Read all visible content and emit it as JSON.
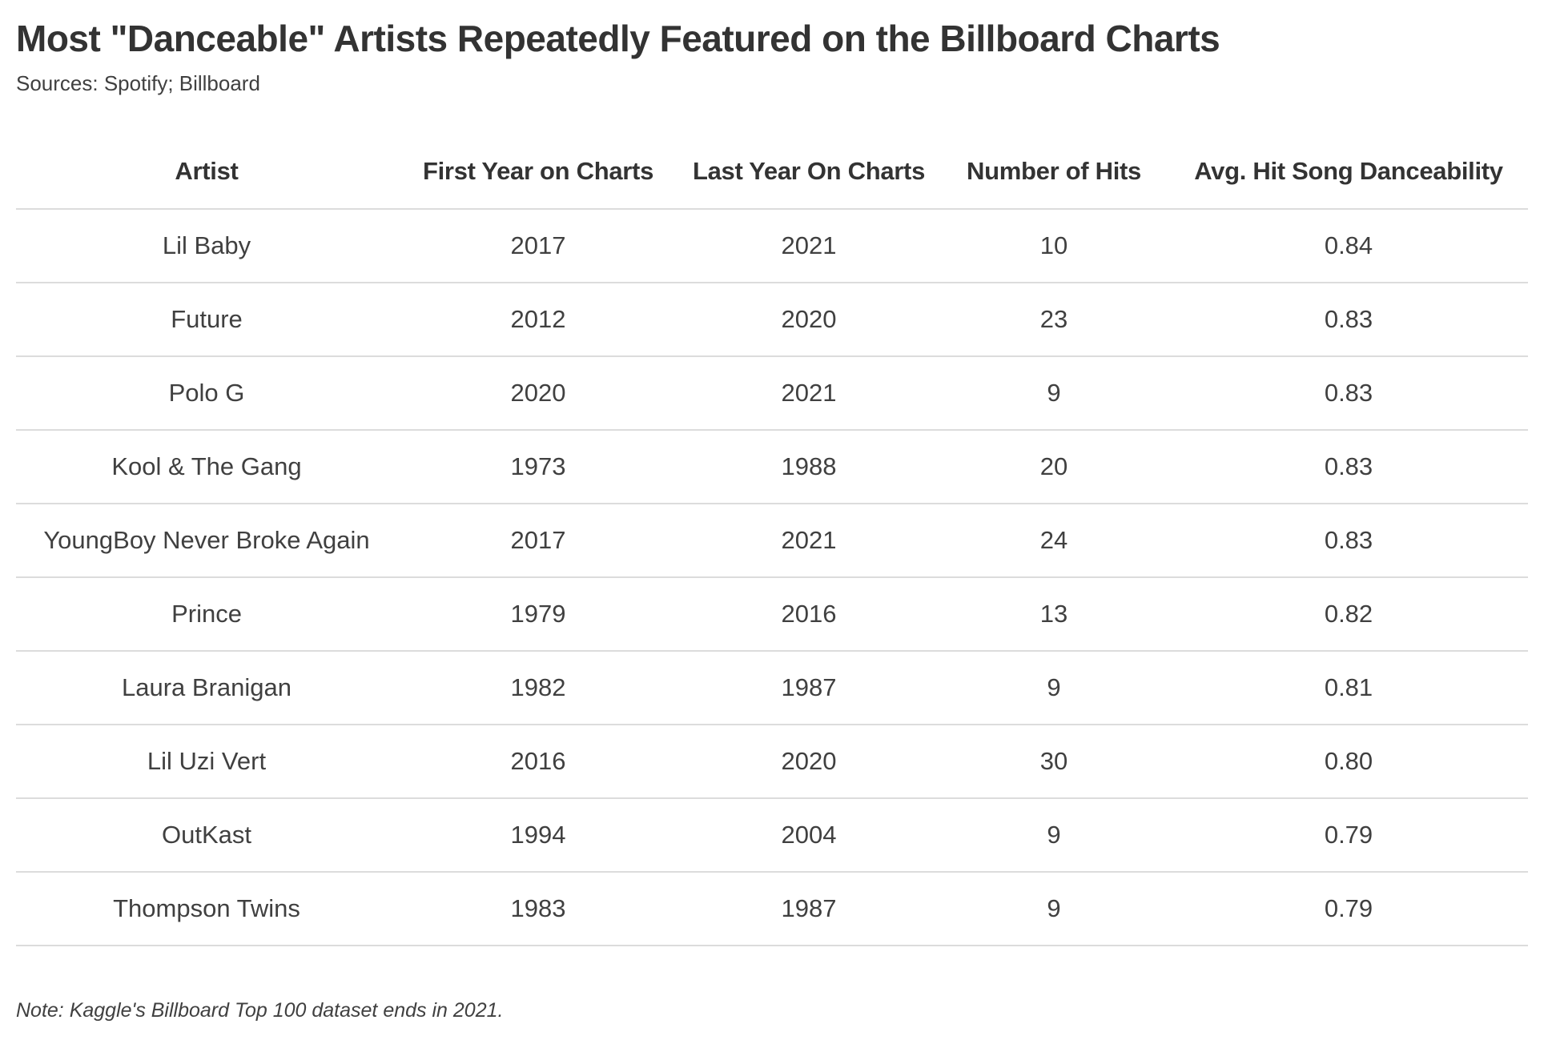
{
  "header": {
    "title": "Most \"Danceable\" Artists Repeatedly Featured on the Billboard Charts",
    "sources_line": "Sources: Spotify; Billboard"
  },
  "footnote": "Note: Kaggle's Billboard Top 100 dataset ends in 2021.",
  "chart_data": {
    "type": "table",
    "title": "Most \"Danceable\" Artists Repeatedly Featured on the Billboard Charts",
    "columns": [
      "Artist",
      "First Year on Charts",
      "Last Year On Charts",
      "Number of Hits",
      "Avg. Hit Song Danceability"
    ],
    "rows": [
      [
        "Lil Baby",
        "2017",
        "2021",
        "10",
        "0.84"
      ],
      [
        "Future",
        "2012",
        "2020",
        "23",
        "0.83"
      ],
      [
        "Polo G",
        "2020",
        "2021",
        "9",
        "0.83"
      ],
      [
        "Kool & The Gang",
        "1973",
        "1988",
        "20",
        "0.83"
      ],
      [
        "YoungBoy Never Broke Again",
        "2017",
        "2021",
        "24",
        "0.83"
      ],
      [
        "Prince",
        "1979",
        "2016",
        "13",
        "0.82"
      ],
      [
        "Laura Branigan",
        "1982",
        "1987",
        "9",
        "0.81"
      ],
      [
        "Lil Uzi Vert",
        "2016",
        "2020",
        "30",
        "0.80"
      ],
      [
        "OutKast",
        "1994",
        "2004",
        "9",
        "0.79"
      ],
      [
        "Thompson Twins",
        "1983",
        "1987",
        "9",
        "0.79"
      ]
    ],
    "layout": {
      "grid": "horizontal-row-dividers-only",
      "alignment": "all-columns-centered"
    }
  },
  "colors": {
    "title_text": "#333333",
    "body_text": "#404040",
    "divider": "#dcdcdc",
    "background": "#ffffff"
  },
  "cell_names": [
    "artist-cell",
    "first-year-cell",
    "last-year-cell",
    "hits-cell",
    "danceability-cell"
  ]
}
